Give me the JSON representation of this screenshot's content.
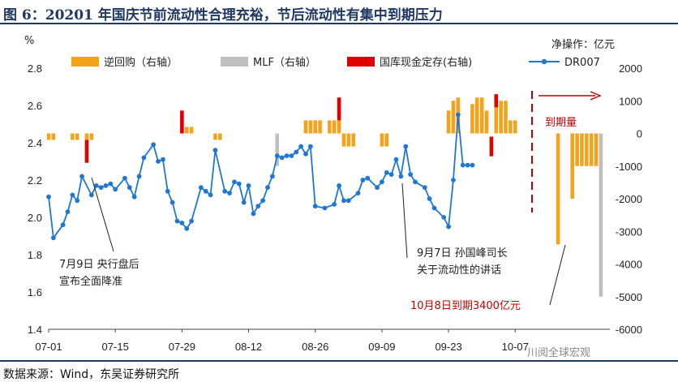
{
  "title": "图 6：20201 年国庆节前流动性合理充裕，节后流动性有集中到期压力",
  "source": "数据来源：Wind，东吴证券研究所",
  "watermark": "川阅全球宏观",
  "chart_data": {
    "type": "bar+line",
    "left_axis": {
      "unit": "%",
      "ylim": [
        1.4,
        2.8
      ],
      "ticks": [
        "1.4",
        "1.6",
        "1.8",
        "2.0",
        "2.2",
        "2.4",
        "2.6",
        "2.8"
      ]
    },
    "right_axis": {
      "unit": "净操作：亿元",
      "ylim": [
        -6000,
        2000
      ],
      "ticks": [
        "-6000",
        "-5000",
        "-4000",
        "-3000",
        "-2000",
        "-1000",
        "0",
        "1000",
        "2000"
      ]
    },
    "x_ticks": [
      "07-01",
      "07-15",
      "07-29",
      "08-12",
      "08-26",
      "09-09",
      "09-23",
      "10-07"
    ],
    "x_tick_day_index": [
      0,
      14,
      28,
      42,
      56,
      70,
      84,
      98
    ],
    "legend": [
      "逆回购（右轴）",
      "MLF（右轴）",
      "国库现金定存(右轴)",
      "DR007"
    ],
    "colors": {
      "reverse_repo": "#f5a31a",
      "mlf": "#bfbfbf",
      "treasury": "#e00000",
      "dr007": "#1f77d4",
      "maturity": "#c00000"
    },
    "dr007_day_index": [
      0,
      1,
      3,
      4,
      5,
      6,
      7,
      9,
      10,
      11,
      12,
      13,
      14,
      16,
      17,
      18,
      19,
      20,
      22,
      23,
      24,
      25,
      26,
      27,
      28,
      29,
      30,
      32,
      33,
      34,
      35,
      37,
      38,
      39,
      40,
      41,
      42,
      43,
      44,
      45,
      46,
      47,
      48,
      49,
      50,
      51,
      52,
      53,
      54,
      55,
      56,
      58,
      60,
      61,
      62,
      63,
      65,
      66,
      67,
      69,
      70,
      71,
      72,
      73,
      74,
      75,
      76,
      77,
      79,
      80,
      81,
      83,
      84,
      85,
      86,
      87,
      88,
      89
    ],
    "dr007": [
      2.11,
      1.89,
      1.96,
      2.03,
      2.12,
      2.09,
      2.22,
      2.12,
      2.17,
      2.16,
      2.17,
      2.18,
      2.15,
      2.21,
      2.16,
      2.11,
      2.22,
      2.32,
      2.39,
      2.3,
      2.31,
      2.14,
      2.08,
      1.98,
      1.97,
      1.94,
      1.98,
      2.16,
      2.14,
      2.12,
      2.36,
      2.14,
      2.13,
      2.19,
      2.18,
      2.08,
      2.17,
      2.02,
      2.06,
      2.09,
      2.16,
      2.22,
      2.33,
      2.32,
      2.33,
      2.33,
      2.35,
      2.38,
      2.34,
      2.38,
      2.06,
      2.05,
      2.07,
      2.17,
      2.09,
      2.09,
      2.13,
      2.2,
      2.21,
      2.16,
      2.19,
      2.24,
      2.23,
      2.31,
      2.22,
      2.38,
      2.23,
      2.19,
      2.16,
      2.1,
      2.05,
      2.0,
      1.95,
      2.2,
      2.55,
      2.28,
      2.28,
      2.28
    ],
    "reverse_repo": [
      {
        "day": 0,
        "value": -200
      },
      {
        "day": 1,
        "value": -200
      },
      {
        "day": 5,
        "value": -200
      },
      {
        "day": 6,
        "value": -200
      },
      {
        "day": 8,
        "value": -200
      },
      {
        "day": 9,
        "value": -200
      },
      {
        "day": 28,
        "value": 200
      },
      {
        "day": 29,
        "value": 200
      },
      {
        "day": 30,
        "value": 200
      },
      {
        "day": 35,
        "value": -200
      },
      {
        "day": 36,
        "value": -200
      },
      {
        "day": 54,
        "value": 400
      },
      {
        "day": 55,
        "value": 400
      },
      {
        "day": 56,
        "value": 400
      },
      {
        "day": 57,
        "value": 400
      },
      {
        "day": 59,
        "value": 400
      },
      {
        "day": 60,
        "value": 400
      },
      {
        "day": 61,
        "value": 400
      },
      {
        "day": 62,
        "value": -400
      },
      {
        "day": 63,
        "value": -400
      },
      {
        "day": 64,
        "value": -400
      },
      {
        "day": 70,
        "value": -400
      },
      {
        "day": 71,
        "value": -400
      },
      {
        "day": 84,
        "value": 700
      },
      {
        "day": 85,
        "value": 1000
      },
      {
        "day": 86,
        "value": 1100
      },
      {
        "day": 89,
        "value": 900
      },
      {
        "day": 90,
        "value": 1100
      },
      {
        "day": 91,
        "value": 1100
      },
      {
        "day": 92,
        "value": 700
      },
      {
        "day": 94,
        "value": 1000
      },
      {
        "day": 95,
        "value": 1000
      },
      {
        "day": 96,
        "value": 1000
      },
      {
        "day": 97,
        "value": 400
      },
      {
        "day": 98,
        "value": 400
      },
      {
        "day": 107,
        "value": -3400
      },
      {
        "day": 110,
        "value": -2000
      },
      {
        "day": 111,
        "value": -1000
      },
      {
        "day": 112,
        "value": -1000
      },
      {
        "day": 113,
        "value": -1000
      },
      {
        "day": 114,
        "value": -1000
      },
      {
        "day": 115,
        "value": -1000
      }
    ],
    "mlf": [
      {
        "day": 48,
        "value": -1000
      },
      {
        "day": 116,
        "value": -5000
      }
    ],
    "treasury": [
      {
        "day": 8,
        "value": -200,
        "base": -900
      },
      {
        "day": 28,
        "value": 700,
        "base": 0
      },
      {
        "day": 61,
        "value": 1100,
        "base": 400
      },
      {
        "day": 93,
        "value": -700,
        "base": -100
      },
      {
        "day": 94,
        "value": 1200,
        "base": 800
      }
    ],
    "annotations": [
      {
        "text": [
          "7月9日  央行盘后",
          "宣布全面降准"
        ]
      },
      {
        "text": [
          "9月7日 孙国峰司长",
          "关于流动性的讲话"
        ]
      },
      {
        "text": [
          "10月8日到期3400亿元"
        ]
      },
      {
        "text": [
          "到期量"
        ]
      }
    ]
  }
}
